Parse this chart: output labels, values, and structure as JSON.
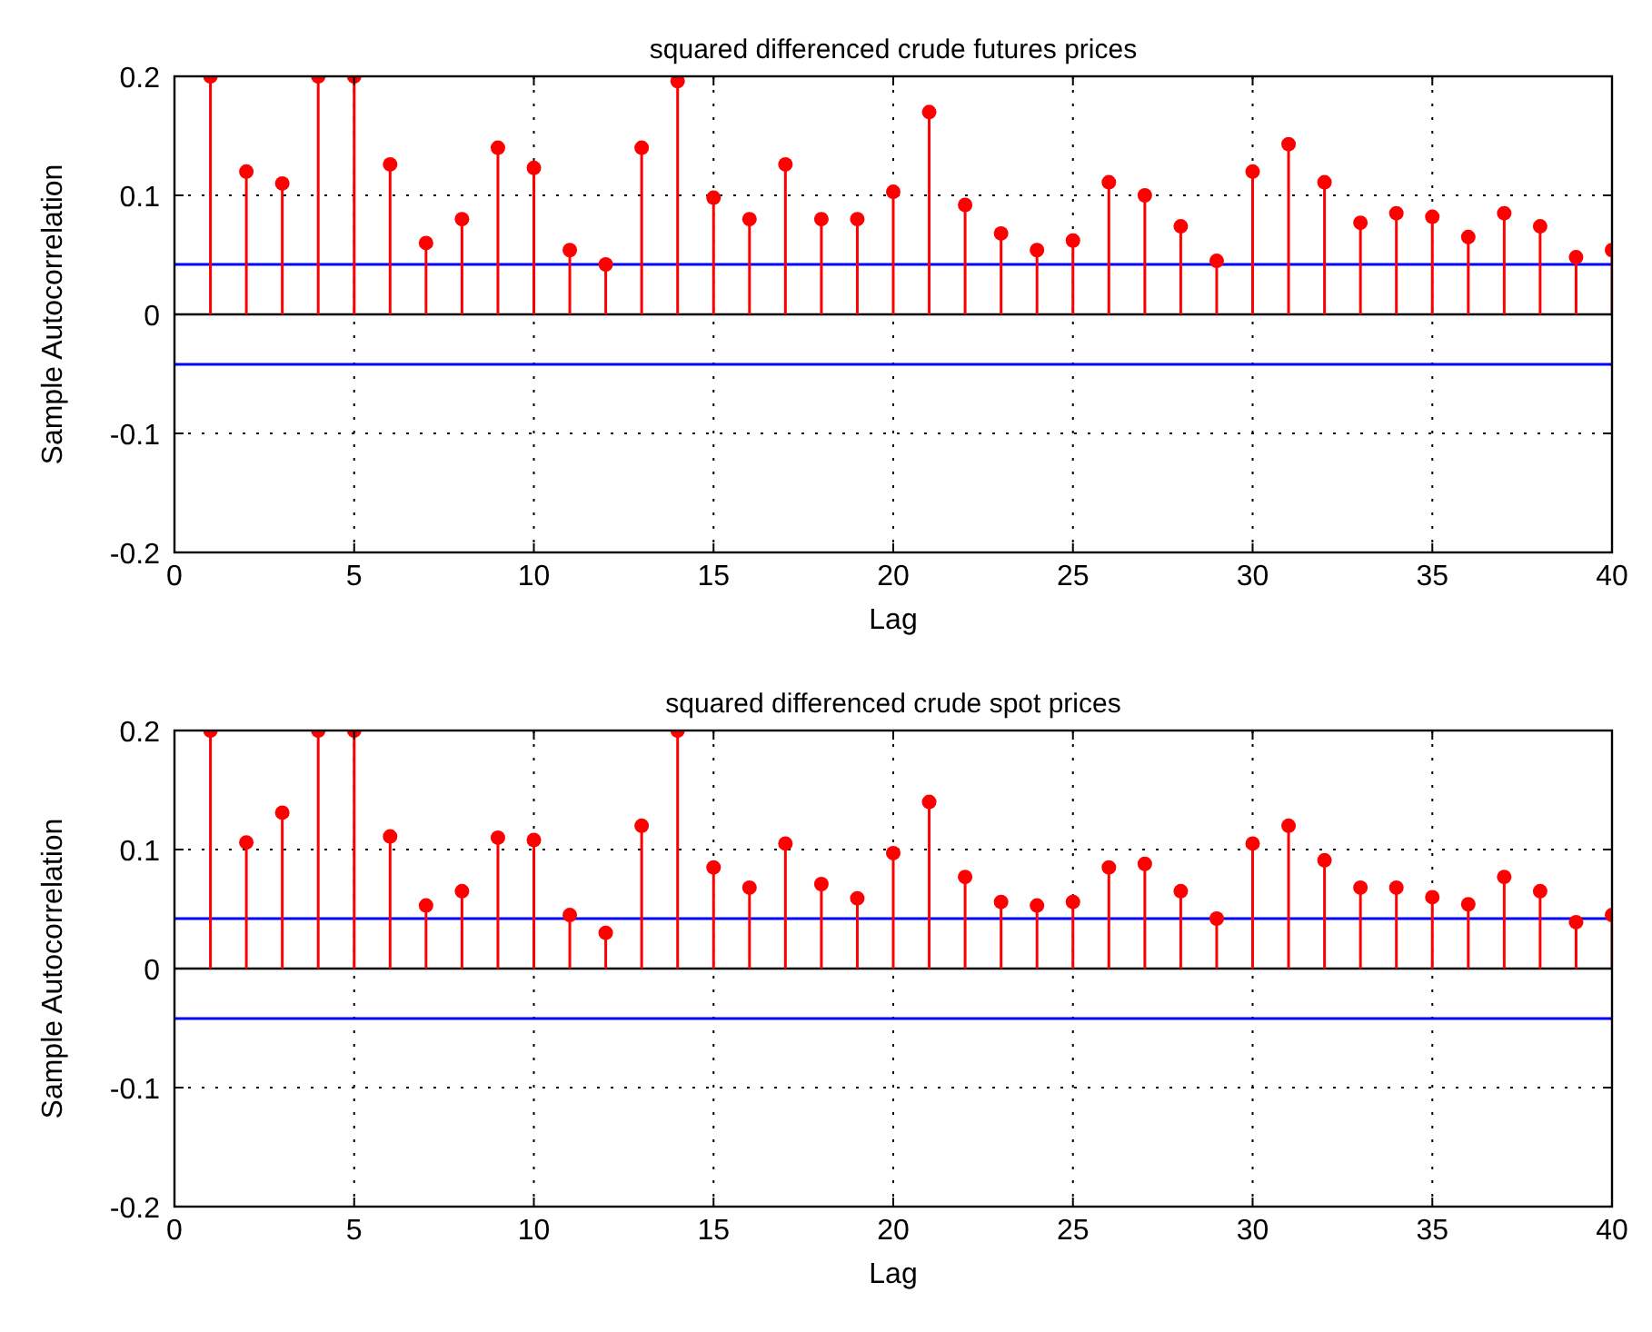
{
  "chart_data": [
    {
      "type": "lollipop",
      "title": "squared differenced crude futures prices",
      "xlabel": "Lag",
      "ylabel": "Sample Autocorrelation",
      "x": [
        1,
        2,
        3,
        4,
        5,
        6,
        7,
        8,
        9,
        10,
        11,
        12,
        13,
        14,
        15,
        16,
        17,
        18,
        19,
        20,
        21,
        22,
        23,
        24,
        25,
        26,
        27,
        28,
        29,
        30,
        31,
        32,
        33,
        34,
        35,
        36,
        37,
        38,
        39,
        40
      ],
      "series": [
        {
          "color": "#ff0000",
          "values": [
            0.2,
            0.12,
            0.11,
            0.2,
            0.2,
            0.126,
            0.06,
            0.08,
            0.14,
            0.123,
            0.054,
            0.042,
            0.14,
            0.196,
            0.098,
            0.08,
            0.126,
            0.08,
            0.08,
            0.103,
            0.17,
            0.092,
            0.068,
            0.054,
            0.062,
            0.111,
            0.1,
            0.074,
            0.045,
            0.12,
            0.143,
            0.111,
            0.077,
            0.085,
            0.082,
            0.065,
            0.085,
            0.074,
            0.048,
            0.054
          ]
        }
      ],
      "xlim": [
        0,
        40
      ],
      "xticks": [
        0,
        5,
        10,
        15,
        20,
        25,
        30,
        35,
        40
      ],
      "ylim": [
        -0.2,
        0.2
      ],
      "yticks": [
        -0.2,
        -0.1,
        0,
        0.1,
        0.2
      ],
      "grid": true,
      "marker": "circle",
      "ref_lines": [
        {
          "axis": "y",
          "value": 0.042,
          "color": "#0000ff"
        },
        {
          "axis": "y",
          "value": -0.042,
          "color": "#0000ff"
        }
      ]
    },
    {
      "type": "lollipop",
      "title": "squared differenced crude spot prices",
      "xlabel": "Lag",
      "ylabel": "Sample Autocorrelation",
      "x": [
        1,
        2,
        3,
        4,
        5,
        6,
        7,
        8,
        9,
        10,
        11,
        12,
        13,
        14,
        15,
        16,
        17,
        18,
        19,
        20,
        21,
        22,
        23,
        24,
        25,
        26,
        27,
        28,
        29,
        30,
        31,
        32,
        33,
        34,
        35,
        36,
        37,
        38,
        39,
        40
      ],
      "series": [
        {
          "color": "#ff0000",
          "values": [
            0.2,
            0.106,
            0.131,
            0.2,
            0.2,
            0.111,
            0.053,
            0.065,
            0.11,
            0.108,
            0.045,
            0.03,
            0.12,
            0.2,
            0.085,
            0.068,
            0.105,
            0.071,
            0.059,
            0.097,
            0.14,
            0.077,
            0.056,
            0.053,
            0.056,
            0.085,
            0.088,
            0.065,
            0.042,
            0.105,
            0.12,
            0.091,
            0.068,
            0.068,
            0.06,
            0.054,
            0.077,
            0.065,
            0.039,
            0.045
          ]
        }
      ],
      "xlim": [
        0,
        40
      ],
      "xticks": [
        0,
        5,
        10,
        15,
        20,
        25,
        30,
        35,
        40
      ],
      "ylim": [
        -0.2,
        0.2
      ],
      "yticks": [
        -0.2,
        -0.1,
        0,
        0.1,
        0.2
      ],
      "grid": true,
      "marker": "circle",
      "ref_lines": [
        {
          "axis": "y",
          "value": 0.042,
          "color": "#0000ff"
        },
        {
          "axis": "y",
          "value": -0.042,
          "color": "#0000ff"
        }
      ]
    }
  ]
}
